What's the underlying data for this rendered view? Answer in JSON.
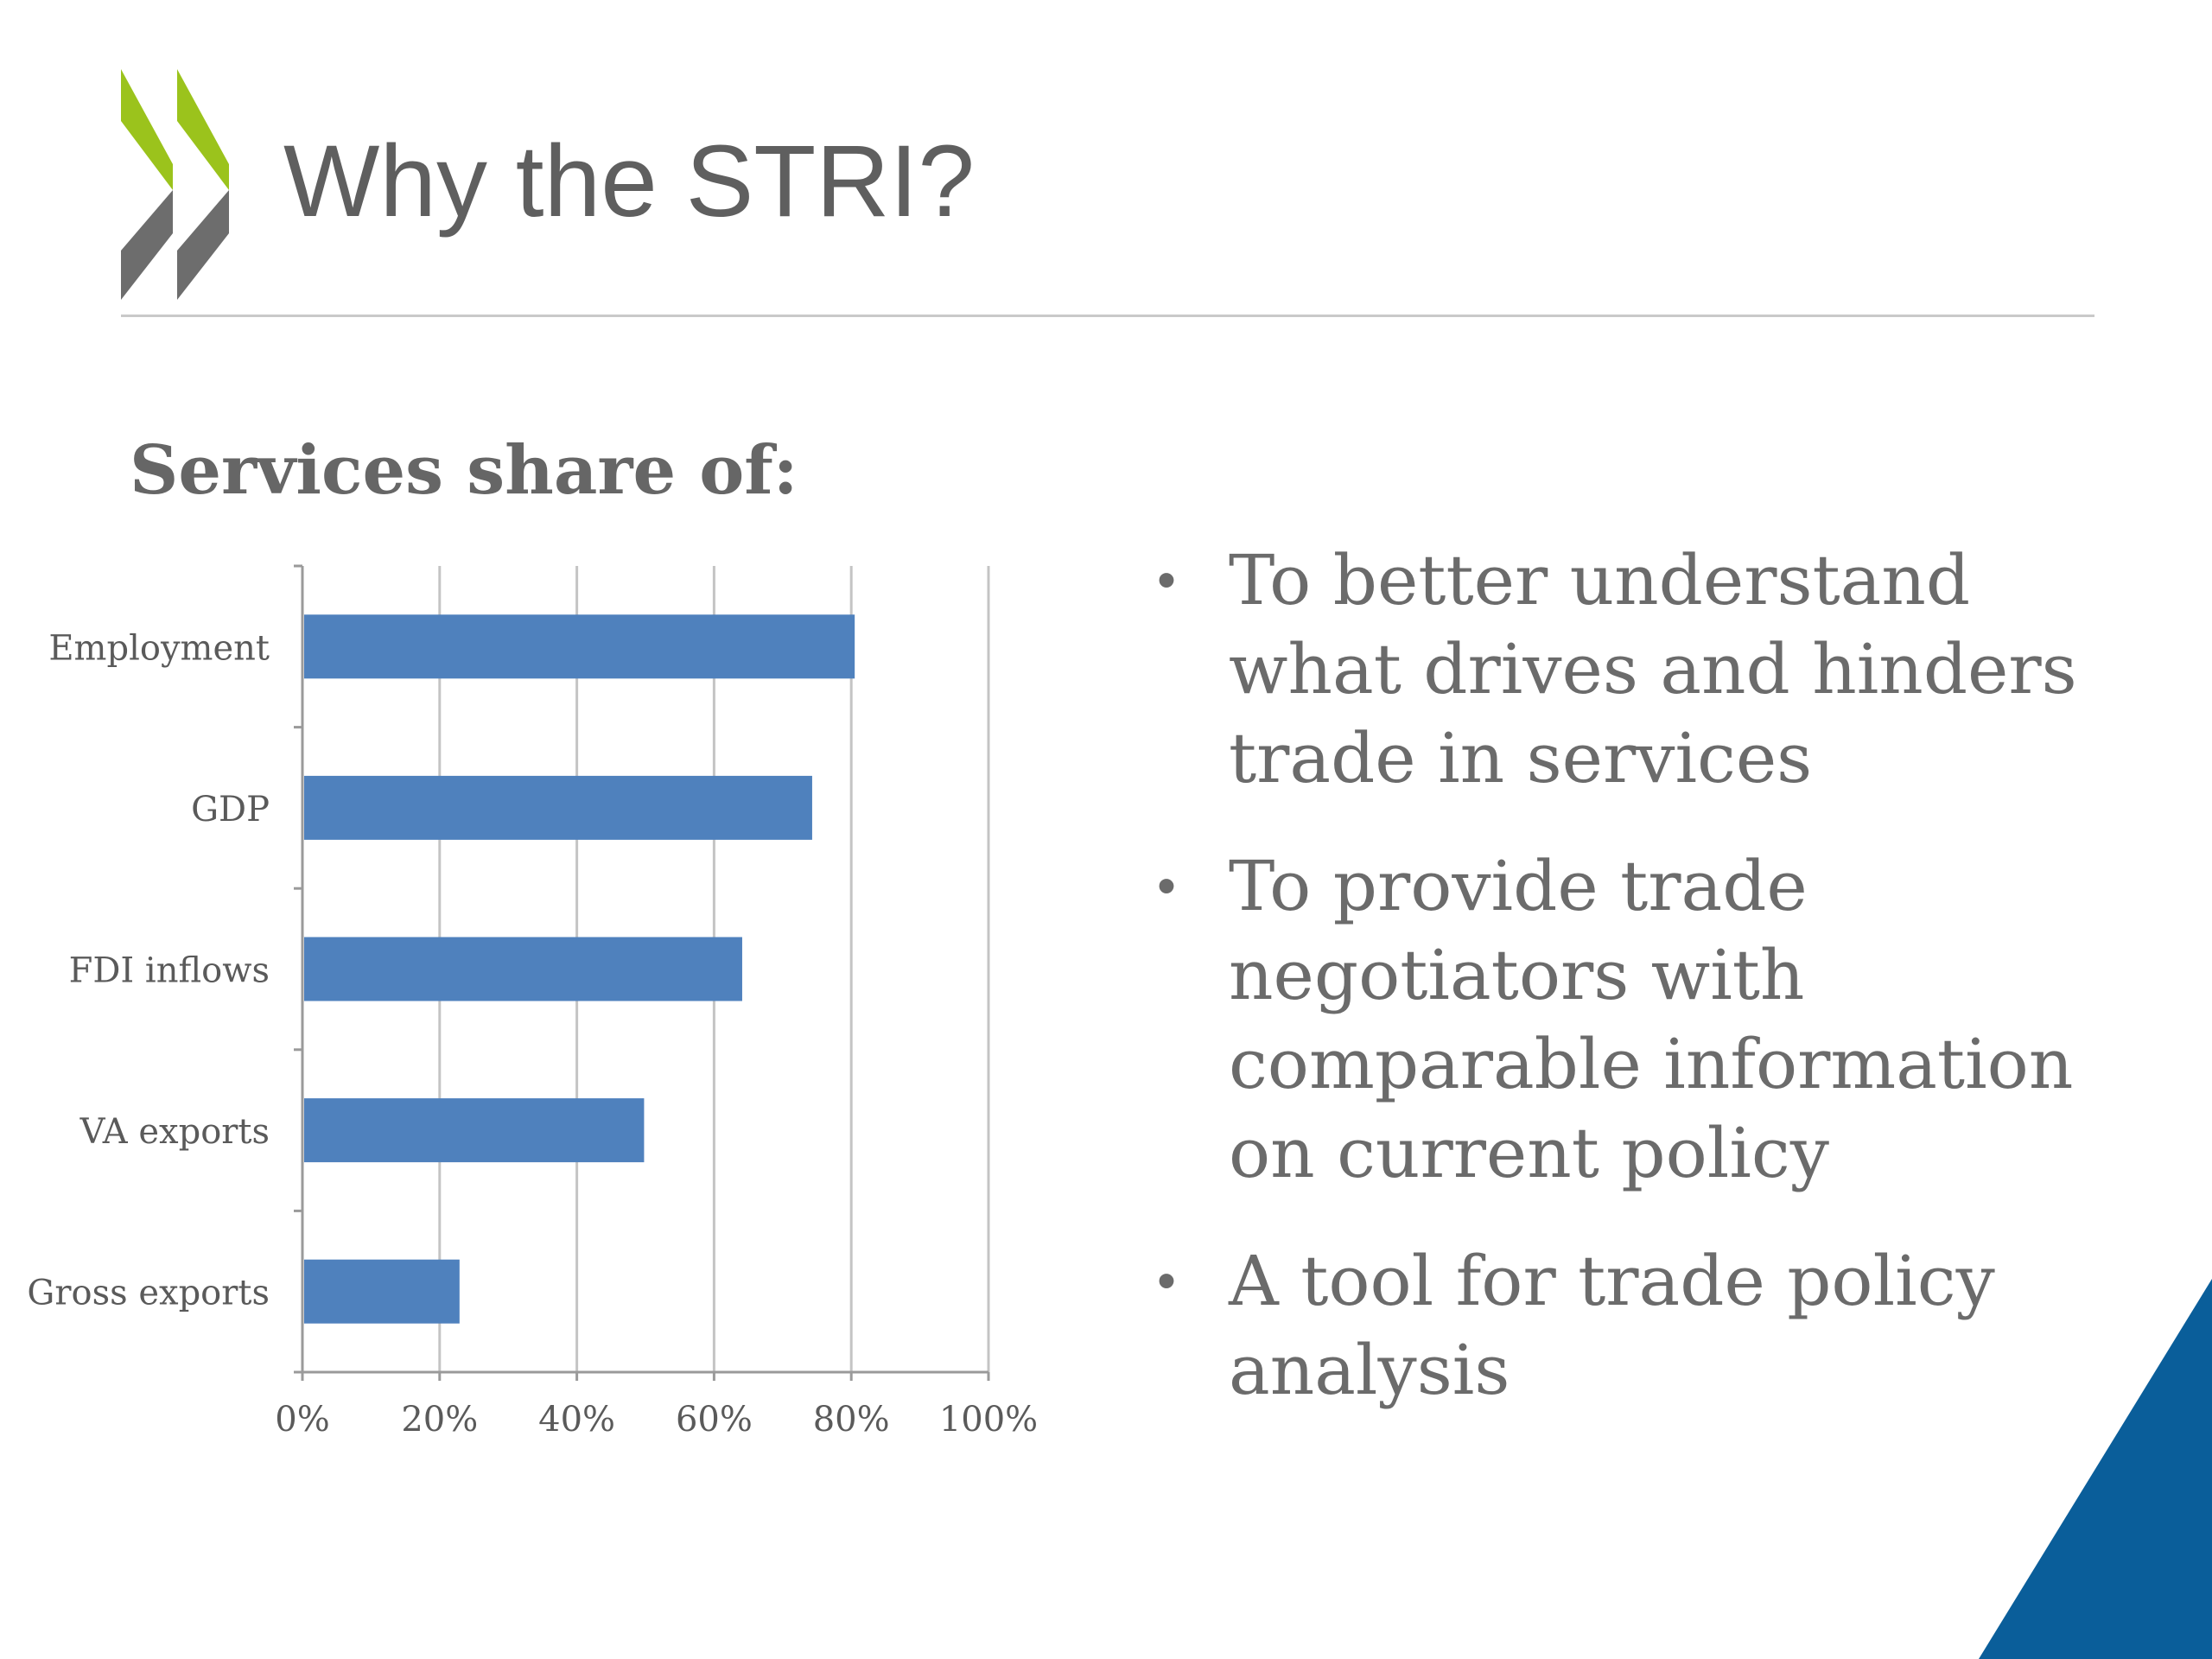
{
  "slide": {
    "title": "Why the STRI?",
    "brand_colors": {
      "green": "#9bc31c",
      "grey": "#6d6d6d",
      "blue": "#0a5e9a"
    }
  },
  "chart_section": {
    "heading": "Services share of:"
  },
  "chart_data": {
    "type": "bar",
    "orientation": "horizontal",
    "categories": [
      "Employment",
      "GDP",
      "FDI inflows",
      "VA exports",
      "Gross exports"
    ],
    "values": [
      80.5,
      74.3,
      64.1,
      49.8,
      22.9
    ],
    "xlim": [
      0,
      100
    ],
    "xticks": [
      "0%",
      "20%",
      "40%",
      "60%",
      "80%",
      "100%"
    ],
    "grid": true,
    "legend": "none",
    "bar_color": "#4f81bd"
  },
  "bullets": [
    {
      "marker": "•",
      "text": "To better understand what drives and hinders trade in services"
    },
    {
      "marker": "•",
      "text": "To provide trade negotiators with comparable information on current policy"
    },
    {
      "marker": "•",
      "text": "A tool for trade policy analysis"
    }
  ]
}
